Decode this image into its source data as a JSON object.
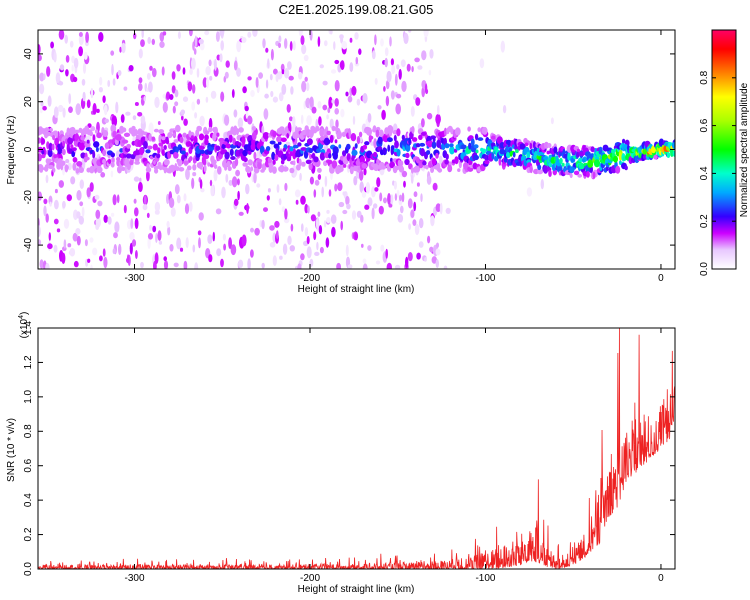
{
  "figure_title": "C2E1.2025.199.08.21.G05",
  "chart_data": [
    {
      "type": "heatmap",
      "xlabel": "Height of straight line (km)",
      "ylabel": "Frequency (Hz)",
      "xlim": [
        -355,
        8
      ],
      "ylim": [
        -50,
        50
      ],
      "xticks": [
        -300,
        -200,
        -100,
        0
      ],
      "yticks": [
        -40,
        -20,
        0,
        20,
        40
      ],
      "colorbar": {
        "label": "Normalized spectral amplitude",
        "range": [
          0,
          1
        ],
        "ticks": [
          "0.0",
          "0.2",
          "0.4",
          "0.6",
          "0.8"
        ],
        "tick_values": [
          0,
          0.2,
          0.4,
          0.6,
          0.8
        ],
        "colormap": [
          "#ffffff",
          "#cc00ff",
          "#0000ff",
          "#00ffff",
          "#00ff00",
          "#ffff00",
          "#ff7f00",
          "#ff0000",
          "#ff0066"
        ]
      },
      "ridge": {
        "description_points_x": [
          -355,
          -300,
          -200,
          -120,
          -100,
          -80,
          -60,
          -40,
          -20,
          0,
          8
        ],
        "description_points_y": [
          0,
          0,
          0,
          0,
          0,
          -2,
          -5,
          -5,
          -2,
          0,
          0
        ],
        "amplitude": [
          0.25,
          0.25,
          0.3,
          0.35,
          0.45,
          0.5,
          0.5,
          0.55,
          0.75,
          0.9,
          0.95
        ]
      }
    },
    {
      "type": "line",
      "xlabel": "Height of straight line (km)",
      "ylabel": "SNR (10 * v/v)",
      "multiplier_label": "(x10",
      "multiplier_exp": "4",
      "multiplier_close": ")",
      "xlim": [
        -355,
        8
      ],
      "ylim": [
        0,
        1.4
      ],
      "xticks": [
        -300,
        -200,
        -100,
        0
      ],
      "yticks": [
        "0.0",
        "0.2",
        "0.4",
        "0.6",
        "0.8",
        "1.0",
        "1.2",
        "1.4"
      ],
      "ytick_values": [
        0,
        0.2,
        0.4,
        0.6,
        0.8,
        1.0,
        1.2,
        1.4
      ],
      "series": [
        {
          "color": "#ee2222",
          "envelope_x": [
            -355,
            -200,
            -130,
            -110,
            -95,
            -80,
            -75,
            -68,
            -60,
            -50,
            -45,
            -40,
            -35,
            -30,
            -25,
            -20,
            -15,
            -10,
            -5,
            0,
            5,
            8
          ],
          "envelope_upper": [
            0.04,
            0.05,
            0.07,
            0.12,
            0.2,
            0.3,
            0.55,
            0.3,
            0.12,
            0.15,
            0.3,
            0.45,
            0.75,
            0.95,
            1.2,
            1.05,
            1.3,
            1.1,
            1.0,
            1.15,
            1.05,
            1.4
          ],
          "envelope_lower": [
            0.0,
            0.0,
            0.0,
            0.0,
            0.0,
            0.02,
            0.05,
            0.02,
            0.0,
            0.02,
            0.05,
            0.1,
            0.15,
            0.3,
            0.35,
            0.5,
            0.55,
            0.6,
            0.65,
            0.7,
            0.75,
            0.9
          ]
        }
      ]
    }
  ]
}
